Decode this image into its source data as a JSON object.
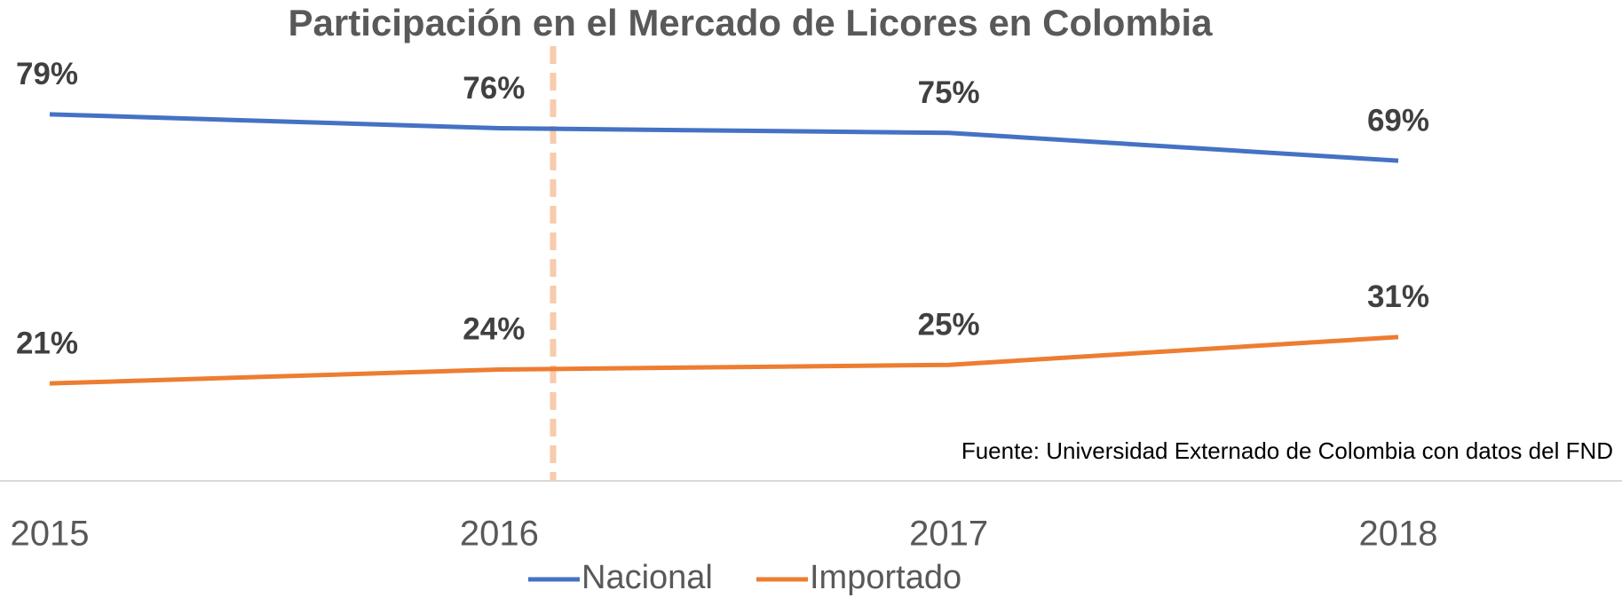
{
  "chart_data": {
    "type": "line",
    "title": "Participación en el Mercado de Licores en Colombia",
    "annotation": "Fuente: Universidad Externado de Colombia con datos del FND",
    "categories": [
      "2015",
      "2016",
      "2017",
      "2018"
    ],
    "series": [
      {
        "name": "Nacional",
        "color": "#4472c4",
        "values": [
          79,
          76,
          75,
          69
        ],
        "value_labels": [
          "79%",
          "76%",
          "75%",
          "69%"
        ]
      },
      {
        "name": "Importado",
        "color": "#ed7d31",
        "values": [
          21,
          24,
          25,
          31
        ],
        "value_labels": [
          "21%",
          "24%",
          "25%",
          "31%"
        ]
      }
    ],
    "ylim": [
      0,
      100
    ],
    "legend": "bottom"
  }
}
